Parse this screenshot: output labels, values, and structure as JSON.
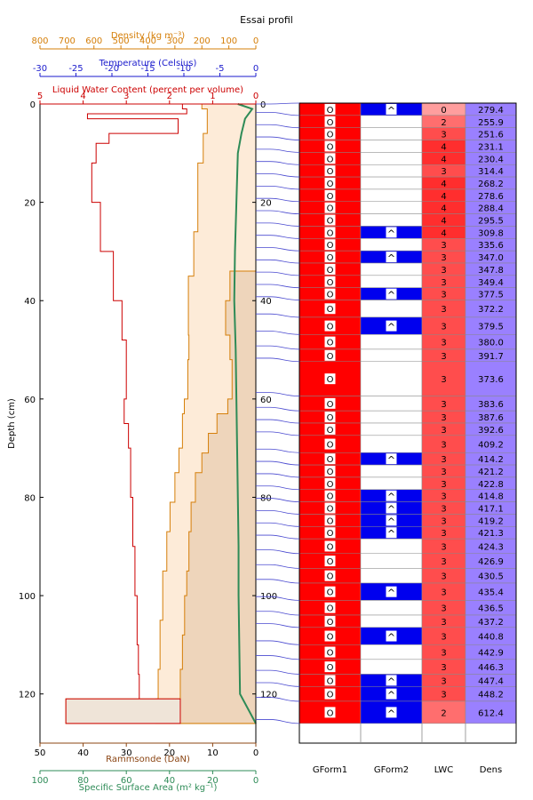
{
  "title": "Essai profil",
  "colors": {
    "density": "#d57f0a",
    "temperature": "#1a1acc",
    "lwc": "#cc0000",
    "ram": "#8b4513",
    "ssa": "#2e8b57",
    "snowfill": "#fdebd8",
    "ramfill": "#eed5bb",
    "gform_red": "#ff0000",
    "gform_blue": "#0000ee",
    "dens_purple": "#9a80ff",
    "link_line": "#4a4ad0"
  },
  "chart_data": {
    "type": "snow-profile",
    "depth_axis": {
      "label": "Depth (cm)",
      "range": [
        130,
        0
      ],
      "ticks": [
        0,
        20,
        40,
        60,
        80,
        100,
        120
      ]
    },
    "density_axis": {
      "label": "Density (kg m⁻³)",
      "range": [
        800,
        0
      ],
      "ticks": [
        800,
        700,
        600,
        500,
        400,
        300,
        200,
        100,
        0
      ]
    },
    "temperature_axis": {
      "label": "Temperature (Celsius)",
      "range": [
        -30,
        0
      ],
      "ticks": [
        -30,
        -25,
        -20,
        -15,
        -10,
        -5,
        0
      ]
    },
    "lwc_axis": {
      "label": "Liquid Water Content (percent per volume)",
      "range": [
        5,
        0
      ],
      "ticks": [
        5,
        4,
        3,
        2,
        1,
        0
      ]
    },
    "ram_axis": {
      "label": "Rammsonde (DaN)",
      "range": [
        50,
        0
      ],
      "ticks": [
        50,
        40,
        30,
        20,
        10,
        0
      ]
    },
    "ssa_axis": {
      "label": "Specific Surface Area (m² kg⁻¹)",
      "range": [
        100,
        0
      ],
      "ticks": [
        100,
        80,
        60,
        40,
        20,
        0
      ]
    },
    "density_profile": {
      "depths": [
        0,
        1,
        6,
        12,
        26,
        35,
        47,
        52,
        60,
        63,
        70,
        75,
        81,
        87,
        95,
        105,
        115,
        121,
        126
      ],
      "values": [
        200,
        180,
        195,
        215,
        230,
        250,
        248,
        252,
        265,
        272,
        285,
        300,
        318,
        330,
        345,
        355,
        362,
        370,
        370
      ]
    },
    "ram_profile": {
      "depths": [
        0,
        34,
        40,
        47,
        52,
        60,
        63,
        67,
        71,
        75,
        81,
        87,
        95,
        100,
        108,
        115,
        121,
        126
      ],
      "values": [
        0,
        6,
        7,
        6,
        5.5,
        6.5,
        9,
        11,
        12.5,
        14,
        15,
        15.5,
        16,
        16.5,
        17,
        17.5,
        44,
        44
      ]
    },
    "lwc_profile": {
      "depths": [
        0,
        1,
        2,
        3,
        6,
        8,
        12,
        20,
        30,
        40,
        48,
        55,
        60,
        65,
        70,
        80,
        90,
        100,
        110,
        116,
        121,
        126
      ],
      "values": [
        1.7,
        1.6,
        3.9,
        1.8,
        3.4,
        3.7,
        3.8,
        3.6,
        3.3,
        3.1,
        3.0,
        3.0,
        3.05,
        2.95,
        2.9,
        2.85,
        2.8,
        2.75,
        2.72,
        2.7,
        2.7,
        2.7
      ]
    },
    "temperature_profile": {
      "depths": [
        0,
        1,
        3,
        6,
        10,
        20,
        30,
        40,
        50,
        60,
        70,
        80,
        90,
        100,
        110,
        120,
        126
      ],
      "values": [
        -2.5,
        -0.5,
        -1.5,
        -2.0,
        -2.5,
        -2.7,
        -2.9,
        -3.0,
        -2.8,
        -2.7,
        -2.6,
        -2.5,
        -2.4,
        -2.4,
        -2.3,
        -2.2,
        0
      ]
    },
    "table": {
      "columns": [
        "GForm1",
        "GForm2",
        "LWC",
        "Dens"
      ],
      "layers": [
        {
          "top": 0,
          "bottom": 2.5,
          "gform1": "O",
          "gform2": "^",
          "lwc": "0",
          "dens": "279.4"
        },
        {
          "top": 2.5,
          "bottom": 5,
          "gform1": "O",
          "gform2": "",
          "lwc": "2",
          "dens": "255.9"
        },
        {
          "top": 5,
          "bottom": 7.5,
          "gform1": "O",
          "gform2": "",
          "lwc": "3",
          "dens": "251.6"
        },
        {
          "top": 7.5,
          "bottom": 10,
          "gform1": "O",
          "gform2": "",
          "lwc": "4",
          "dens": "231.1"
        },
        {
          "top": 10,
          "bottom": 12.5,
          "gform1": "O",
          "gform2": "",
          "lwc": "4",
          "dens": "230.4"
        },
        {
          "top": 12.5,
          "bottom": 15,
          "gform1": "O",
          "gform2": "",
          "lwc": "3",
          "dens": "314.4"
        },
        {
          "top": 15,
          "bottom": 17.5,
          "gform1": "O",
          "gform2": "",
          "lwc": "4",
          "dens": "268.2"
        },
        {
          "top": 17.5,
          "bottom": 20,
          "gform1": "O",
          "gform2": "",
          "lwc": "4",
          "dens": "278.6"
        },
        {
          "top": 20,
          "bottom": 22.5,
          "gform1": "O",
          "gform2": "",
          "lwc": "4",
          "dens": "288.4"
        },
        {
          "top": 22.5,
          "bottom": 25,
          "gform1": "O",
          "gform2": "",
          "lwc": "4",
          "dens": "295.5"
        },
        {
          "top": 25,
          "bottom": 27.5,
          "gform1": "O",
          "gform2": "^",
          "lwc": "4",
          "dens": "309.8"
        },
        {
          "top": 27.5,
          "bottom": 30,
          "gform1": "O",
          "gform2": "",
          "lwc": "3",
          "dens": "335.6"
        },
        {
          "top": 30,
          "bottom": 32.5,
          "gform1": "O",
          "gform2": "^",
          "lwc": "3",
          "dens": "347.0"
        },
        {
          "top": 32.5,
          "bottom": 35,
          "gform1": "O",
          "gform2": "",
          "lwc": "3",
          "dens": "347.8"
        },
        {
          "top": 35,
          "bottom": 37.5,
          "gform1": "O",
          "gform2": "",
          "lwc": "3",
          "dens": "349.4"
        },
        {
          "top": 37.5,
          "bottom": 40,
          "gform1": "O",
          "gform2": "^",
          "lwc": "3",
          "dens": "377.5"
        },
        {
          "top": 40,
          "bottom": 43.5,
          "gform1": "O",
          "gform2": "",
          "lwc": "3",
          "dens": "372.2"
        },
        {
          "top": 43.5,
          "bottom": 47,
          "gform1": "O",
          "gform2": "^",
          "lwc": "3",
          "dens": "379.5"
        },
        {
          "top": 47,
          "bottom": 50,
          "gform1": "O",
          "gform2": "",
          "lwc": "3",
          "dens": "380.0"
        },
        {
          "top": 50,
          "bottom": 52.5,
          "gform1": "O",
          "gform2": "",
          "lwc": "3",
          "dens": "391.7"
        },
        {
          "top": 52.5,
          "bottom": 59.5,
          "gform1": "O",
          "gform2": "",
          "lwc": "3",
          "dens": "373.6"
        },
        {
          "top": 59.5,
          "bottom": 62.5,
          "gform1": "O",
          "gform2": "",
          "lwc": "3",
          "dens": "383.6"
        },
        {
          "top": 62.5,
          "bottom": 65,
          "gform1": "O",
          "gform2": "",
          "lwc": "3",
          "dens": "387.6"
        },
        {
          "top": 65,
          "bottom": 67.5,
          "gform1": "O",
          "gform2": "",
          "lwc": "3",
          "dens": "392.6"
        },
        {
          "top": 67.5,
          "bottom": 71,
          "gform1": "O",
          "gform2": "",
          "lwc": "3",
          "dens": "409.2"
        },
        {
          "top": 71,
          "bottom": 73.5,
          "gform1": "O",
          "gform2": "^",
          "lwc": "3",
          "dens": "414.2"
        },
        {
          "top": 73.5,
          "bottom": 76,
          "gform1": "O",
          "gform2": "",
          "lwc": "3",
          "dens": "421.2"
        },
        {
          "top": 76,
          "bottom": 78.5,
          "gform1": "O",
          "gform2": "",
          "lwc": "3",
          "dens": "422.8"
        },
        {
          "top": 78.5,
          "bottom": 81,
          "gform1": "O",
          "gform2": "^",
          "lwc": "3",
          "dens": "414.8"
        },
        {
          "top": 81,
          "bottom": 83.5,
          "gform1": "O",
          "gform2": "^",
          "lwc": "3",
          "dens": "417.1"
        },
        {
          "top": 83.5,
          "bottom": 86,
          "gform1": "O",
          "gform2": "^",
          "lwc": "3",
          "dens": "419.2"
        },
        {
          "top": 86,
          "bottom": 88.5,
          "gform1": "O",
          "gform2": "^",
          "lwc": "3",
          "dens": "421.3"
        },
        {
          "top": 88.5,
          "bottom": 91.5,
          "gform1": "O",
          "gform2": "",
          "lwc": "3",
          "dens": "424.3"
        },
        {
          "top": 91.5,
          "bottom": 94.5,
          "gform1": "O",
          "gform2": "",
          "lwc": "3",
          "dens": "426.9"
        },
        {
          "top": 94.5,
          "bottom": 97.5,
          "gform1": "O",
          "gform2": "",
          "lwc": "3",
          "dens": "430.5"
        },
        {
          "top": 97.5,
          "bottom": 101,
          "gform1": "O",
          "gform2": "^",
          "lwc": "3",
          "dens": "435.4"
        },
        {
          "top": 101,
          "bottom": 104,
          "gform1": "O",
          "gform2": "",
          "lwc": "3",
          "dens": "436.5"
        },
        {
          "top": 104,
          "bottom": 106.5,
          "gform1": "O",
          "gform2": "",
          "lwc": "3",
          "dens": "437.2"
        },
        {
          "top": 106.5,
          "bottom": 110,
          "gform1": "O",
          "gform2": "^",
          "lwc": "3",
          "dens": "440.8"
        },
        {
          "top": 110,
          "bottom": 113,
          "gform1": "O",
          "gform2": "",
          "lwc": "3",
          "dens": "442.9"
        },
        {
          "top": 113,
          "bottom": 116,
          "gform1": "O",
          "gform2": "",
          "lwc": "3",
          "dens": "446.3"
        },
        {
          "top": 116,
          "bottom": 118.5,
          "gform1": "O",
          "gform2": "^",
          "lwc": "3",
          "dens": "447.4"
        },
        {
          "top": 118.5,
          "bottom": 121.5,
          "gform1": "O",
          "gform2": "^",
          "lwc": "3",
          "dens": "448.2"
        },
        {
          "top": 121.5,
          "bottom": 126,
          "gform1": "O",
          "gform2": "^",
          "lwc": "2",
          "dens": "612.4"
        }
      ]
    }
  }
}
